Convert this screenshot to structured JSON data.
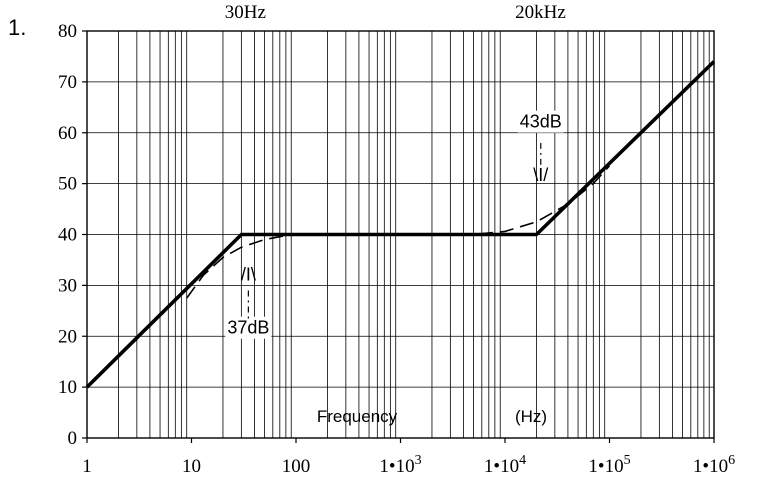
{
  "figure_number": "1.",
  "chart_data": {
    "type": "line",
    "title": "",
    "xlabel": "Frequency",
    "xunit": "(Hz)",
    "ylabel": "",
    "x_scale": "log",
    "xlim": [
      1,
      1000000
    ],
    "ylim": [
      0,
      80
    ],
    "grid": true,
    "y_ticks": [
      "0",
      "10",
      "20",
      "30",
      "40",
      "50",
      "60",
      "70",
      "80"
    ],
    "x_ticks": [
      {
        "value": 1,
        "label": "1",
        "exp": ""
      },
      {
        "value": 10,
        "label": "10",
        "exp": ""
      },
      {
        "value": 100,
        "label": "100",
        "exp": ""
      },
      {
        "value": 1000,
        "label": "1•10",
        "exp": "3"
      },
      {
        "value": 10000,
        "label": "1•10",
        "exp": "4"
      },
      {
        "value": 100000,
        "label": "1•10",
        "exp": "5"
      },
      {
        "value": 1000000,
        "label": "1•10",
        "exp": "6"
      }
    ],
    "top_labels": [
      {
        "x": 30,
        "text": "30Hz"
      },
      {
        "x": 20000,
        "text": "20kHz"
      }
    ],
    "series": [
      {
        "style": "solid",
        "points": [
          [
            1,
            10
          ],
          [
            30,
            40
          ],
          [
            20000,
            40
          ],
          [
            1000000,
            74
          ]
        ]
      },
      {
        "style": "dashed",
        "points": [
          [
            9,
            27.5
          ],
          [
            13,
            32
          ],
          [
            20,
            35.5
          ],
          [
            30,
            37.5
          ],
          [
            50,
            39
          ],
          [
            80,
            39.8
          ],
          [
            120,
            40
          ],
          [
            1000,
            40
          ],
          [
            5000,
            40
          ],
          [
            10000,
            40.6
          ],
          [
            20000,
            42.5
          ],
          [
            40000,
            46
          ],
          [
            70000,
            50
          ],
          [
            100000,
            53.5
          ]
        ]
      }
    ],
    "annotations": [
      {
        "text": "37dB",
        "x": 35,
        "y": 20.5
      },
      {
        "text": "43dB",
        "x": 22000,
        "y": 61
      },
      {
        "text": "/I\\",
        "x": 35,
        "y": 31
      },
      {
        "text": "\\I/",
        "x": 22000,
        "y": 50.5
      }
    ]
  }
}
